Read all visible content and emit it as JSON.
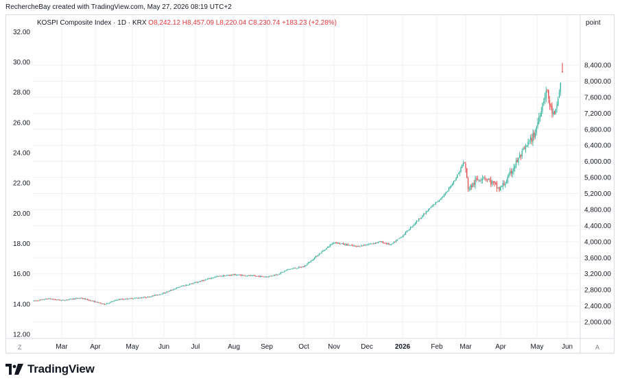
{
  "header": {
    "credit": "RechercheBay created with TradingView.com, May 27, 2026 08:19 UTC+2",
    "symbol": "KOSPI Composite Index · 1D · KRX",
    "ohlc": {
      "open": "O8,242.12",
      "high": "H8,457.09",
      "low": "L8,220.04",
      "close": "C8,230.74",
      "change": "+183.23 (+2.28%)"
    }
  },
  "right_axis_unit": "point",
  "corner_left": "Z",
  "corner_right": "A",
  "brand": "TradingView",
  "colors": {
    "up": "#22ab94",
    "down": "#e0383b",
    "grid": "#eef0f3",
    "text": "#131722"
  },
  "chart_data": {
    "type": "candlestick",
    "x_tick_labels": [
      "Mar",
      "Apr",
      "May",
      "Jun",
      "Jul",
      "Aug",
      "Sep",
      "Oct",
      "Nov",
      "Dec",
      "2026",
      "Feb",
      "Mar",
      "Apr",
      "May",
      "Jun"
    ],
    "left_axis": {
      "labels": [
        "32.00",
        "30.00",
        "28.00",
        "26.00",
        "24.00",
        "22.00",
        "20.00",
        "18.00",
        "16.00",
        "14.00",
        "12.00"
      ],
      "range": [
        12,
        32
      ]
    },
    "right_axis": {
      "labels": [
        "8,400.00",
        "8,000.00",
        "7,600.00",
        "7,200.00",
        "6,800.00",
        "6,400.00",
        "6,000.00",
        "5,600.00",
        "5,200.00",
        "4,800.00",
        "4,400.00",
        "4,000.00",
        "3,600.00",
        "3,200.00",
        "2,800.00",
        "2,400.00",
        "2,000.00"
      ],
      "range": [
        1800,
        8720
      ]
    },
    "left_axis_series": {
      "x": [
        "Feb",
        "Mar",
        "Apr",
        "May",
        "Jun",
        "Jul",
        "Aug",
        "Sep",
        "Oct",
        "Nov",
        "Dec",
        "2026",
        "Feb",
        "Mar",
        "Apr",
        "May",
        "May 27"
      ],
      "close": [
        14.1,
        14.3,
        14.5,
        13.6,
        14.4,
        15.0,
        15.8,
        16.1,
        16.0,
        16.8,
        18.6,
        18.3,
        18.9,
        21.5,
        22.5,
        22.0,
        31.0
      ]
    },
    "right_axis_series": {
      "x": [
        "Feb",
        "Mar",
        "Apr",
        "May",
        "Jun",
        "Jul",
        "Aug",
        "Sep",
        "Oct",
        "Nov",
        "Dec",
        "2026",
        "Feb",
        "Mar",
        "Apr",
        "May",
        "May 27"
      ],
      "close": [
        2520,
        2560,
        2600,
        2480,
        2700,
        2950,
        3200,
        3250,
        3230,
        3500,
        4100,
        3950,
        4220,
        5100,
        5600,
        5350,
        8230
      ]
    },
    "last_bar": {
      "open": 8242.12,
      "high": 8457.09,
      "low": 8220.04,
      "close": 8230.74
    }
  }
}
